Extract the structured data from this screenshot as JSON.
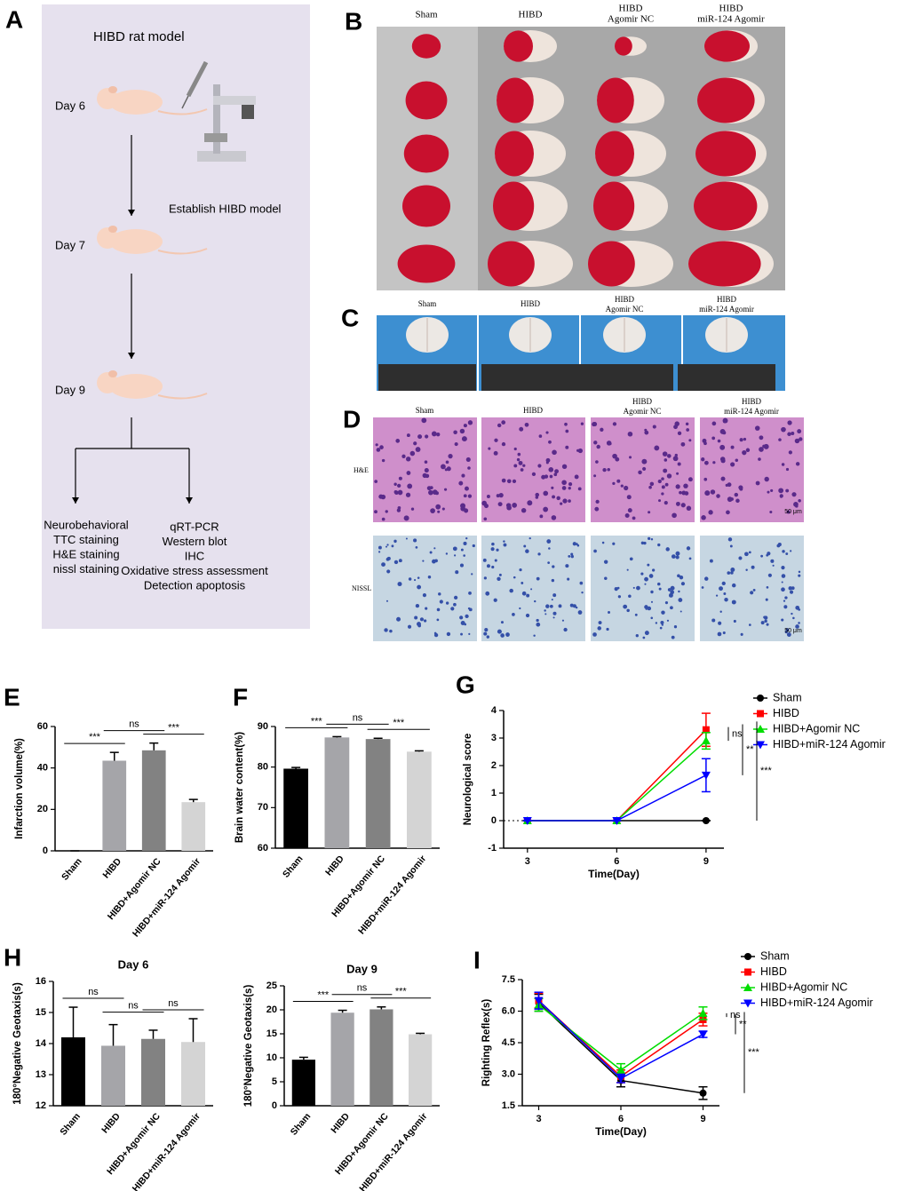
{
  "panel_a": {
    "label": "A",
    "title": "HIBD rat model",
    "days": [
      "Day 6",
      "Day 7",
      "Day 9"
    ],
    "step": "Establish HIBD model",
    "left_assays": [
      "Neurobehavioral",
      "TTC staining",
      "H&E staining",
      "nissl staining"
    ],
    "right_assays": [
      "qRT-PCR",
      "Western blot",
      "IHC",
      "Oxidative stress assessment",
      "Detection apoptosis"
    ]
  },
  "panel_b": {
    "label": "B",
    "column_headers": [
      [
        "Sham"
      ],
      [
        "HIBD"
      ],
      [
        "HIBD",
        "Agomir NC"
      ],
      [
        "HIBD",
        "miR-124 Agomir"
      ]
    ]
  },
  "panel_c": {
    "label": "C",
    "column_headers": [
      [
        "Sham"
      ],
      [
        "HIBD"
      ],
      [
        "HIBD",
        "Agomir NC"
      ],
      [
        "HIBD",
        "miR-124 Agomir"
      ]
    ]
  },
  "panel_d": {
    "label": "D",
    "column_headers": [
      [
        "Sham"
      ],
      [
        "HIBD"
      ],
      [
        "HIBD",
        "Agomir NC"
      ],
      [
        "HIBD",
        "miR-124 Agomir"
      ]
    ],
    "row_labels": [
      "H&E",
      "NISSL"
    ],
    "scale_bars": [
      "50 μm",
      "50 μm"
    ]
  },
  "chart_data": [
    {
      "type": "bar",
      "panel_label": "E",
      "y_label": "Infarction volume(%)",
      "categories": [
        "Sham",
        "HIBD",
        "HIBD+Agomir NC",
        "HIBD+miR-124 Agomir"
      ],
      "values": [
        0,
        43.5,
        48.5,
        23.5
      ],
      "errors": [
        0,
        4,
        3.5,
        1.3
      ],
      "colors": [
        "#000000",
        "#a5a5a9",
        "#828282",
        "#d4d4d4"
      ],
      "ylim": [
        0,
        60
      ],
      "yticks": [
        0,
        20,
        40,
        60
      ],
      "significance": [
        "***",
        "ns",
        "***"
      ]
    },
    {
      "type": "bar",
      "panel_label": "F",
      "y_label": "Brain water content(%)",
      "categories": [
        "Sham",
        "HIBD",
        "HIBD+Agomir NC",
        "HIBD+miR-124 Agomir"
      ],
      "values": [
        79.6,
        87.3,
        86.9,
        83.8
      ],
      "errors": [
        0.3,
        0.2,
        0.2,
        0.2
      ],
      "colors": [
        "#000000",
        "#a5a5a9",
        "#828282",
        "#d4d4d4"
      ],
      "ylim": [
        60,
        90
      ],
      "yticks": [
        60,
        70,
        80,
        90
      ],
      "significance": [
        "***",
        "ns",
        "***"
      ]
    },
    {
      "type": "line",
      "panel_label": "G",
      "x_label": "Time(Day)",
      "y_label": "Neurological score",
      "x": [
        3,
        6,
        9
      ],
      "xlim": [
        2.2,
        9.6
      ],
      "xticks": [
        3,
        6,
        9
      ],
      "ylim": [
        -1,
        4
      ],
      "yticks": [
        -1,
        0,
        1,
        2,
        3,
        4
      ],
      "series": [
        {
          "name": "Sham",
          "color": "#000000",
          "marker": "circle",
          "values": [
            0,
            0,
            0
          ],
          "errors": [
            0,
            0,
            0
          ]
        },
        {
          "name": "HIBD",
          "color": "#ff0000",
          "marker": "square",
          "values": [
            0,
            0,
            3.3
          ],
          "errors": [
            0,
            0,
            0.6
          ]
        },
        {
          "name": "HIBD+Agomir NC",
          "color": "#00dd00",
          "marker": "triangle",
          "values": [
            0,
            0,
            2.9
          ],
          "errors": [
            0,
            0,
            0.3
          ]
        },
        {
          "name": "HIBD+miR-124 Agomir",
          "color": "#0000ff",
          "marker": "triangle-down",
          "values": [
            0,
            0,
            1.65
          ],
          "errors": [
            0,
            0,
            0.6
          ]
        }
      ],
      "significance": [
        "ns",
        "**",
        "***"
      ]
    },
    {
      "type": "bar",
      "panel_label": "H",
      "title": "Day 6",
      "y_label": "180°Negative Geotaxis(s)",
      "categories": [
        "Sham",
        "HIBD",
        "HIBD+Agomir NC",
        "HIBD+miR-124 Agomir"
      ],
      "values": [
        14.2,
        13.93,
        14.15,
        14.05
      ],
      "errors": [
        0.97,
        0.68,
        0.28,
        0.75
      ],
      "colors": [
        "#000000",
        "#a5a5a9",
        "#828282",
        "#d4d4d4"
      ],
      "ylim": [
        12,
        16
      ],
      "yticks": [
        12,
        13,
        14,
        15,
        16
      ],
      "significance": [
        "ns",
        "ns",
        "ns"
      ]
    },
    {
      "type": "bar",
      "title": "Day 9",
      "y_label": "180°Negative Geotaxis(s)",
      "categories": [
        "Sham",
        "HIBD",
        "HIBD+Agomir NC",
        "HIBD+miR-124 Agomir"
      ],
      "values": [
        9.6,
        19.4,
        20.1,
        14.9
      ],
      "errors": [
        0.5,
        0.5,
        0.5,
        0.2
      ],
      "colors": [
        "#000000",
        "#a5a5a9",
        "#828282",
        "#d4d4d4"
      ],
      "ylim": [
        0,
        25
      ],
      "yticks": [
        0,
        5,
        10,
        15,
        20,
        25
      ],
      "significance": [
        "***",
        "ns",
        "***"
      ]
    },
    {
      "type": "line",
      "panel_label": "I",
      "x_label": "Time(Day)",
      "y_label": "Righting Reflex(s)",
      "x": [
        3,
        6,
        9
      ],
      "xlim": [
        2.4,
        9.6
      ],
      "xticks": [
        3,
        6,
        9
      ],
      "ylim": [
        1.5,
        7.5
      ],
      "yticks": [
        {
          "value": 1.5,
          "label": "1.5"
        },
        {
          "value": 3,
          "label": "3.0"
        },
        {
          "value": 4.5,
          "label": "4.5"
        },
        {
          "value": 6,
          "label": "6.0"
        },
        {
          "value": 7.5,
          "label": "7.5"
        }
      ],
      "series": [
        {
          "name": "Sham",
          "color": "#000000",
          "marker": "circle",
          "values": [
            6.4,
            2.7,
            2.1
          ],
          "errors": [
            0.4,
            0.3,
            0.3
          ]
        },
        {
          "name": "HIBD",
          "color": "#ff0000",
          "marker": "square",
          "values": [
            6.5,
            2.9,
            5.6
          ],
          "errors": [
            0.35,
            0.3,
            0.3
          ]
        },
        {
          "name": "HIBD+Agomir NC",
          "color": "#00dd00",
          "marker": "triangle",
          "values": [
            6.3,
            3.2,
            5.9
          ],
          "errors": [
            0.3,
            0.3,
            0.3
          ]
        },
        {
          "name": "HIBD+miR-124 Agomir",
          "color": "#0000ff",
          "marker": "triangle-down",
          "values": [
            6.5,
            2.8,
            4.9
          ],
          "errors": [
            0.4,
            0.2,
            0.15
          ]
        }
      ],
      "significance": [
        "ns",
        "**",
        "***"
      ]
    }
  ]
}
